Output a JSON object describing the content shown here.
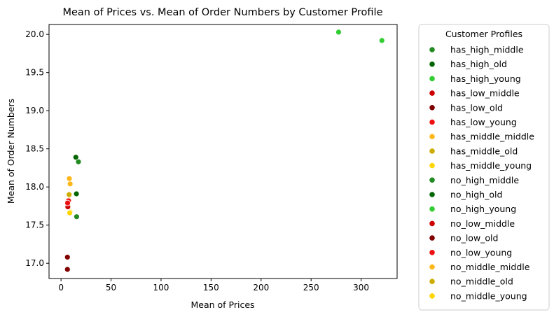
{
  "chart_data": {
    "type": "scatter",
    "title": "Mean of Prices vs. Mean of Order Numbers by Customer Profile",
    "xlabel": "Mean of Prices",
    "ylabel": "Mean of Order Numbers",
    "xlim": [
      -12,
      336
    ],
    "ylim": [
      16.8,
      20.13
    ],
    "xticks": [
      "0",
      "50",
      "100",
      "150",
      "200",
      "250",
      "300"
    ],
    "yticks": [
      "17.0",
      "17.5",
      "18.0",
      "18.5",
      "19.0",
      "19.5",
      "20.0"
    ],
    "grid": false,
    "legend_title": "Customer Profiles",
    "legend_position": "outside-right",
    "series": [
      {
        "name": "has_high_middle",
        "color": "#228b22",
        "points": [
          [
            17.4,
            18.33
          ]
        ]
      },
      {
        "name": "has_high_old",
        "color": "#006400",
        "points": [
          [
            14.8,
            18.39
          ]
        ]
      },
      {
        "name": "has_high_young",
        "color": "#32cd32",
        "points": [
          [
            277.5,
            20.03
          ]
        ]
      },
      {
        "name": "has_low_middle",
        "color": "#cc0000",
        "points": [
          [
            6.7,
            17.81
          ]
        ]
      },
      {
        "name": "has_low_old",
        "color": "#800000",
        "points": [
          [
            6.4,
            17.08
          ]
        ]
      },
      {
        "name": "has_low_young",
        "color": "#ee1111",
        "points": [
          [
            7.5,
            17.82
          ]
        ]
      },
      {
        "name": "has_middle_middle",
        "color": "#ffb81c",
        "points": [
          [
            8.3,
            18.11
          ]
        ]
      },
      {
        "name": "has_middle_old",
        "color": "#ccac00",
        "points": [
          [
            8.2,
            17.89
          ]
        ]
      },
      {
        "name": "has_middle_young",
        "color": "#ffd700",
        "points": [
          [
            9.2,
            17.67
          ]
        ]
      },
      {
        "name": "no_high_middle",
        "color": "#228b22",
        "points": [
          [
            15.6,
            17.61
          ]
        ]
      },
      {
        "name": "no_high_old",
        "color": "#006400",
        "points": [
          [
            15.4,
            17.91
          ]
        ]
      },
      {
        "name": "no_high_young",
        "color": "#32cd32",
        "points": [
          [
            320.8,
            19.92
          ]
        ]
      },
      {
        "name": "no_low_middle",
        "color": "#cc0000",
        "points": [
          [
            6.8,
            17.74
          ]
        ]
      },
      {
        "name": "no_low_old",
        "color": "#800000",
        "points": [
          [
            6.4,
            16.92
          ]
        ]
      },
      {
        "name": "no_low_young",
        "color": "#ee1111",
        "points": [
          [
            6.6,
            17.79
          ]
        ]
      },
      {
        "name": "no_middle_middle",
        "color": "#ffb81c",
        "points": [
          [
            9.1,
            18.04
          ]
        ]
      },
      {
        "name": "no_middle_old",
        "color": "#ccac00",
        "points": [
          [
            8.1,
            17.9
          ]
        ]
      },
      {
        "name": "no_middle_young",
        "color": "#ffd700",
        "points": [
          [
            8.7,
            17.66
          ]
        ]
      }
    ]
  }
}
